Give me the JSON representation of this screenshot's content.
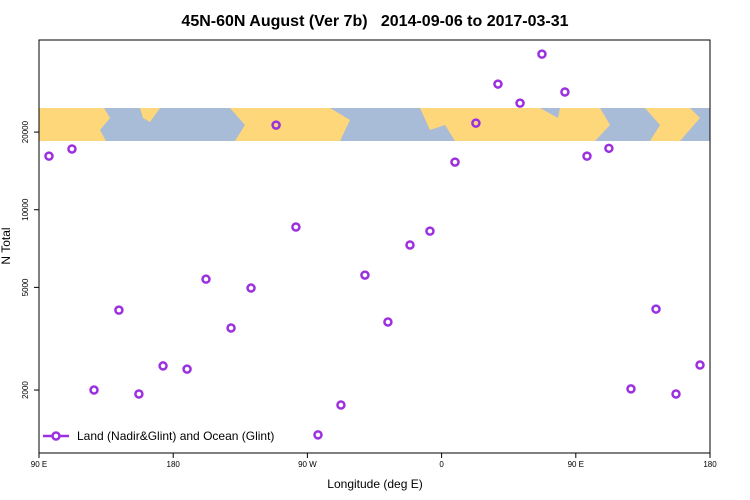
{
  "chart_data": {
    "type": "scatter",
    "title": "45N-60N August (Ver 7b)   2014-09-06 to 2017-03-31",
    "x_label": "Longitude (deg E)",
    "y_label": "N Total",
    "x": [
      96.7,
      112.1,
      126.9,
      143.6,
      157,
      173.2,
      189.3,
      202,
      218.8,
      232.2,
      249,
      262.3,
      277.1,
      292.5,
      308.6,
      324,
      338.8,
      352.2,
      369,
      383,
      397.8,
      412.6,
      427.3,
      442.7,
      457.5,
      472.2,
      487,
      503.8,
      517.2,
      533.3
    ],
    "series": [
      {
        "name": "Land (Nadir&Glint) and Ocean (Glint)",
        "color": "#9b30e0",
        "values": [
          16140,
          17200,
          2000,
          4080,
          1930,
          2480,
          2410,
          5380,
          3480,
          4970,
          21290,
          8570,
          1340,
          1750,
          5580,
          3670,
          7300,
          8260,
          15300,
          21670,
          30700,
          25900,
          40100,
          28600,
          16140,
          17300,
          2020,
          4120,
          1930,
          2500
        ]
      }
    ],
    "xlim": [
      90,
      540
    ],
    "xticks": [
      {
        "value": 90,
        "label": "90 E"
      },
      180,
      {
        "value": 270,
        "label": "90 W"
      },
      {
        "value": 360,
        "label": "0"
      },
      {
        "value": 450,
        "label": "90 E"
      },
      {
        "value": 540,
        "label": "180"
      }
    ],
    "ylim": [
      1140,
      45500
    ],
    "yticks": [
      2000,
      5000,
      10000,
      20000
    ],
    "log_y": true,
    "legend": "lower left"
  }
}
